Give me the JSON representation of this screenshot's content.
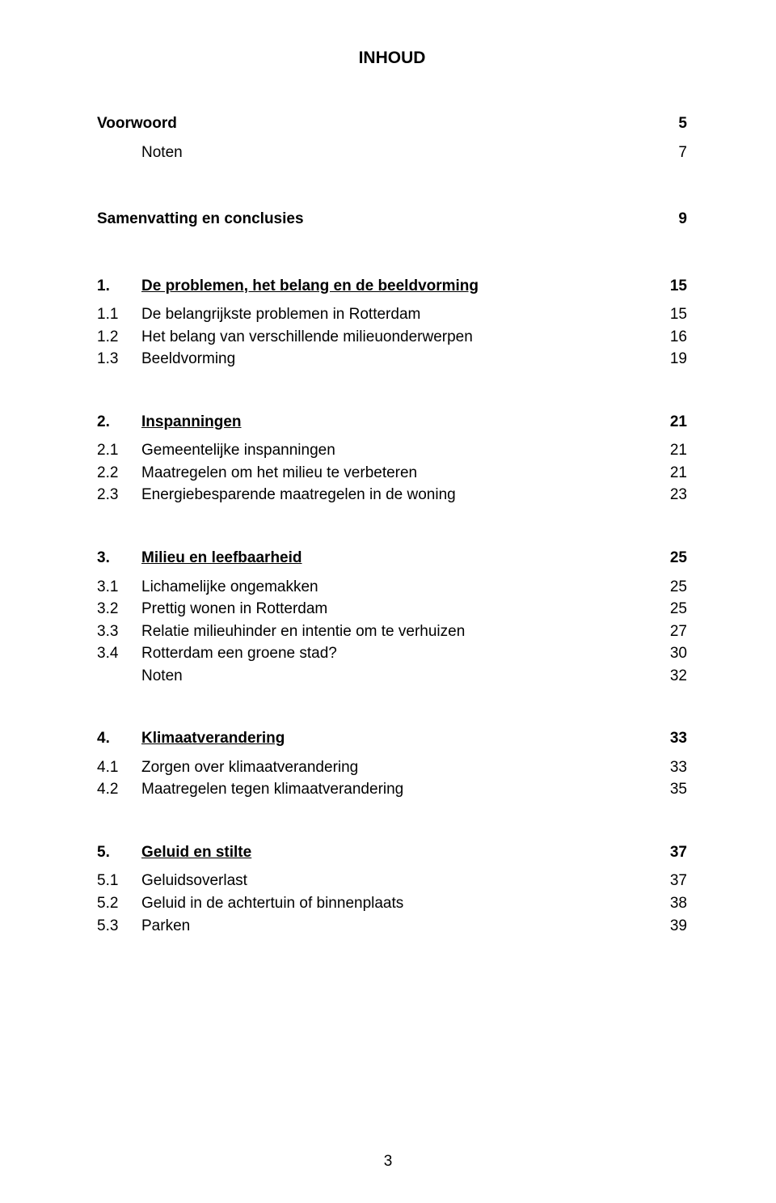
{
  "doc_title": "INHOUD",
  "page_number": "3",
  "rows": [
    {
      "num": "",
      "label": "Voorwoord",
      "pg": "5",
      "bold": true,
      "underline": false,
      "gap_after": "small"
    },
    {
      "num": "",
      "label": "Noten",
      "pg": "7",
      "bold": false,
      "underline": false,
      "gap_after": "large",
      "indent": true
    },
    {
      "num": "",
      "label": "Samenvatting en conclusies",
      "pg": "9",
      "bold": true,
      "underline": false,
      "gap_after": "large"
    },
    {
      "num": "1.",
      "label": "De problemen, het belang en de beeldvorming",
      "pg": "15",
      "bold": true,
      "underline": true,
      "gap_after": "small"
    },
    {
      "num": "1.1",
      "label": "De belangrijkste problemen in Rotterdam",
      "pg": "15",
      "bold": false,
      "underline": false
    },
    {
      "num": "1.2",
      "label": "Het belang van verschillende milieuonderwerpen",
      "pg": "16",
      "bold": false,
      "underline": false
    },
    {
      "num": "1.3",
      "label": "Beeldvorming",
      "pg": "19",
      "bold": false,
      "underline": false,
      "gap_after": "med"
    },
    {
      "num": "2.",
      "label": "Inspanningen",
      "pg": "21",
      "bold": true,
      "underline": true,
      "gap_after": "small"
    },
    {
      "num": "2.1",
      "label": "Gemeentelijke inspanningen",
      "pg": "21",
      "bold": false,
      "underline": false
    },
    {
      "num": "2.2",
      "label": "Maatregelen om het milieu te verbeteren",
      "pg": "21",
      "bold": false,
      "underline": false
    },
    {
      "num": "2.3",
      "label": "Energiebesparende maatregelen in de woning",
      "pg": "23",
      "bold": false,
      "underline": false,
      "gap_after": "med"
    },
    {
      "num": "3.",
      "label": "Milieu en leefbaarheid",
      "pg": "25",
      "bold": true,
      "underline": true,
      "gap_after": "small"
    },
    {
      "num": "3.1",
      "label": "Lichamelijke ongemakken",
      "pg": "25",
      "bold": false,
      "underline": false
    },
    {
      "num": "3.2",
      "label": "Prettig wonen in Rotterdam",
      "pg": "25",
      "bold": false,
      "underline": false
    },
    {
      "num": "3.3",
      "label": "Relatie milieuhinder en intentie om te verhuizen",
      "pg": "27",
      "bold": false,
      "underline": false
    },
    {
      "num": "3.4",
      "label": "Rotterdam een groene stad?",
      "pg": "30",
      "bold": false,
      "underline": false
    },
    {
      "num": "",
      "label": "Noten",
      "pg": "32",
      "bold": false,
      "underline": false,
      "indent": true,
      "gap_after": "med"
    },
    {
      "num": "4.",
      "label": "Klimaatverandering",
      "pg": "33",
      "bold": true,
      "underline": true,
      "gap_after": "small"
    },
    {
      "num": "4.1",
      "label": "Zorgen over klimaatverandering",
      "pg": "33",
      "bold": false,
      "underline": false
    },
    {
      "num": "4.2",
      "label": "Maatregelen tegen klimaatverandering",
      "pg": "35",
      "bold": false,
      "underline": false,
      "gap_after": "med"
    },
    {
      "num": "5.",
      "label": "Geluid en stilte",
      "pg": "37",
      "bold": true,
      "underline": true,
      "gap_after": "small"
    },
    {
      "num": "5.1",
      "label": "Geluidsoverlast",
      "pg": "37",
      "bold": false,
      "underline": false
    },
    {
      "num": "5.2",
      "label": "Geluid in de achtertuin of binnenplaats",
      "pg": "38",
      "bold": false,
      "underline": false
    },
    {
      "num": "5.3",
      "label": "Parken",
      "pg": "39",
      "bold": false,
      "underline": false
    }
  ]
}
